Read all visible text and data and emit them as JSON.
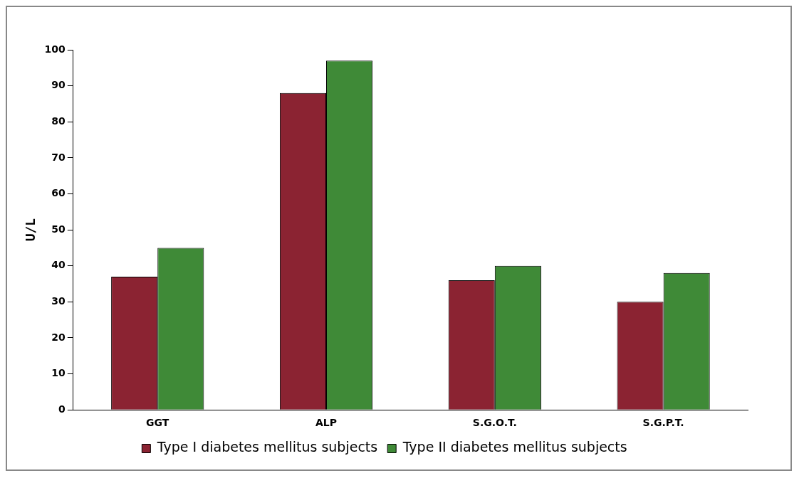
{
  "chart_data": {
    "type": "bar",
    "ylabel": "U/L",
    "categories": [
      "GGT",
      "ALP",
      "S.G.O.T.",
      "S.G.P.T."
    ],
    "series": [
      {
        "name": "Type I diabetes mellitus subjects",
        "color": "#8b2332",
        "values": [
          37,
          88,
          36,
          30
        ]
      },
      {
        "name": "Type II diabetes mellitus subjects",
        "color": "#3f8a37",
        "values": [
          45,
          97,
          40,
          38
        ]
      }
    ],
    "ylim": [
      0,
      100
    ],
    "yticks": [
      0,
      10,
      20,
      30,
      40,
      50,
      60,
      70,
      80,
      90,
      100
    ],
    "grid": false,
    "legend": "bottom"
  }
}
